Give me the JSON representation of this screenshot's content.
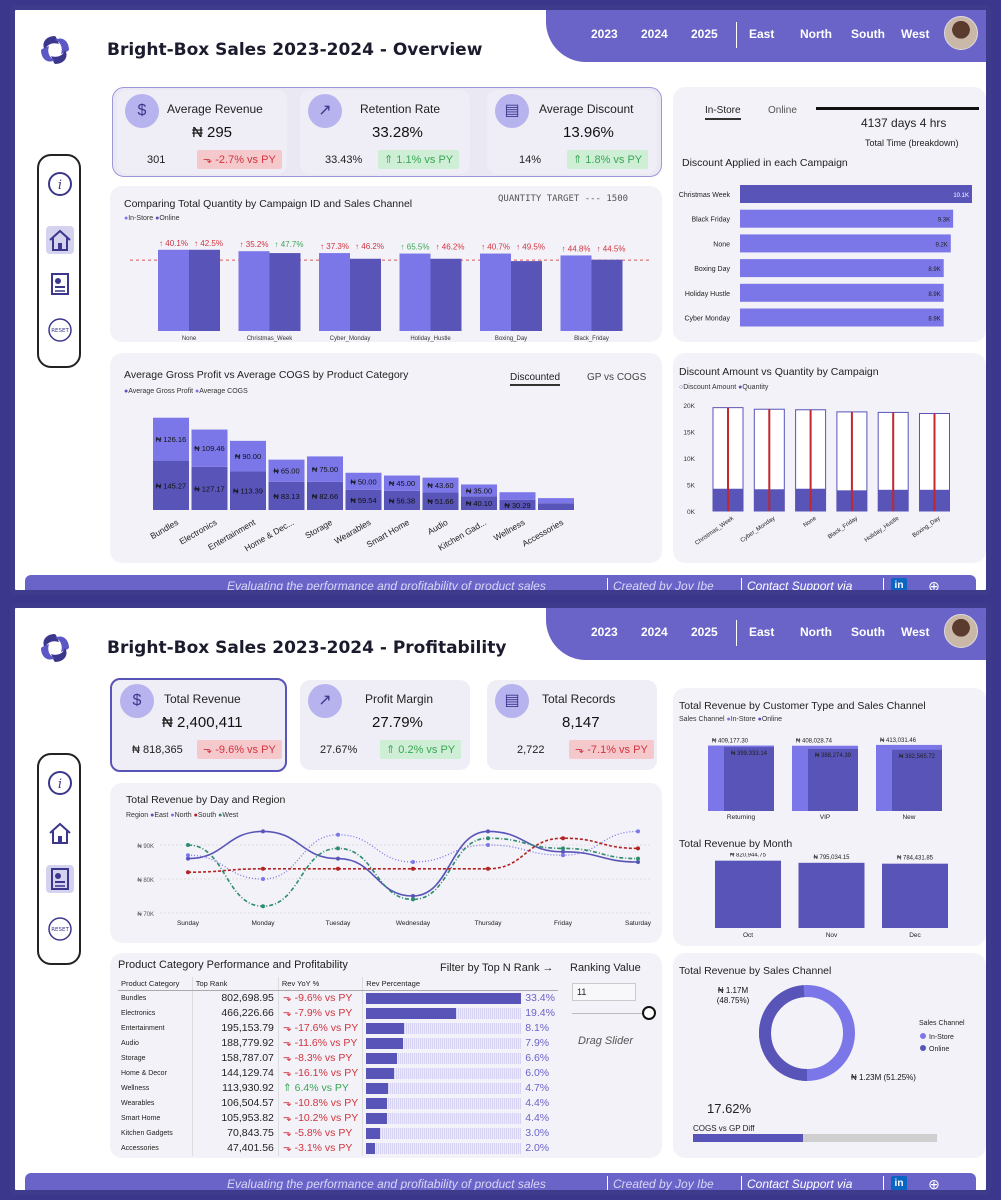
{
  "colors": {
    "dark": "#5854b8",
    "light": "#7b77e8",
    "green": "#2e8b6e",
    "red": "#b22222"
  },
  "nav": {
    "years": [
      "2023",
      "2024",
      "2025"
    ],
    "regions": [
      "East",
      "North",
      "South",
      "West"
    ]
  },
  "footer": {
    "tagline": "Evaluating the performance and profitability of product sales",
    "creator": "Created by Joy Ibe",
    "contact": "Contact Support via",
    "linkedin": "in"
  },
  "overview": {
    "title": "Bright-Box Sales 2023-2024 - Overview",
    "kpis": [
      {
        "label": "Average Revenue",
        "value": "₦ 295",
        "prev": "301",
        "delta": "-2.7% vs PY",
        "trend": "down"
      },
      {
        "label": "Retention Rate",
        "value": "33.28%",
        "prev": "33.43%",
        "delta": "1.1% vs PY",
        "trend": "up"
      },
      {
        "label": "Average Discount",
        "value": "13.96%",
        "prev": "14%",
        "delta": "1.8% vs PY",
        "trend": "up"
      }
    ],
    "channel_tabs": [
      "In-Store",
      "Online"
    ],
    "total_time": "4137 days 4 hrs",
    "total_time_label": "Total Time (breakdown)",
    "qty_chart": {
      "title": "Comparing Total Quantity by Campaign ID and Sales Channel",
      "target_label": "QUANTITY TARGET --- 1500",
      "legend": [
        "In-Store",
        "Online"
      ],
      "categories": [
        "None",
        "Christmas_Week",
        "Cyber_Monday",
        "Holiday_Hustle",
        "Boxing_Day",
        "Black_Friday"
      ],
      "instore_labels": [
        "↑ 40.1%",
        "↑ 35.2%",
        "↑ 37.3%",
        "↑ 65.5%",
        "↑ 40.7%",
        "↑ 44.8%"
      ],
      "online_labels": [
        "↑ 42.5%",
        "↑ 47.7%",
        "↑ 46.2%",
        "↑ 46.2%",
        "↑ 49.5%",
        "↑ 44.5%"
      ],
      "label_good": [
        [
          false,
          false
        ],
        [
          false,
          true
        ],
        [
          false,
          false
        ],
        [
          true,
          false
        ],
        [
          false,
          false
        ],
        [
          false,
          false
        ]
      ]
    },
    "discount_chart": {
      "title": "Discount Applied in each Campaign",
      "categories": [
        "Christmas Week",
        "Black Friday",
        "None",
        "Boxing Day",
        "Holiday Hustle",
        "Cyber Monday"
      ],
      "values": [
        10.1,
        9.3,
        9.2,
        8.9,
        8.9,
        8.9
      ],
      "labels": [
        "10.1K",
        "9.3K",
        "9.2K",
        "8.9K",
        "8.9K",
        "8.9K"
      ]
    },
    "gp_chart": {
      "title": "Average Gross Profit vs Average COGS by Product Category",
      "tabs": [
        "Discounted",
        "GP vs COGS"
      ],
      "legend": [
        "Average Gross Profit",
        "Average COGS"
      ],
      "categories": [
        "Bundles",
        "Electronics",
        "Entertainment",
        "Home & Dec...",
        "Storage",
        "Wearables",
        "Smart Home",
        "Audio",
        "Kitchen Gad...",
        "Wellness",
        "Accessories"
      ],
      "gp": [
        145.27,
        127.17,
        113.39,
        83.13,
        82.66,
        59.54,
        56.38,
        51.66,
        40.1,
        30.29,
        20
      ],
      "cogs": [
        126.16,
        109.46,
        90.0,
        65.0,
        75.0,
        50.0,
        45.0,
        43.6,
        35.0,
        22,
        15
      ],
      "gp_labels": [
        "₦ 145.27",
        "₦ 127.17",
        "₦ 113.39",
        "₦ 83.13",
        "₦ 82.66",
        "₦ 59.54",
        "₦ 56.38",
        "₦ 51.66",
        "₦ 40.10",
        "₦ 30.29",
        ""
      ],
      "cogs_labels": [
        "₦ 126.16",
        "₦ 109.46",
        "₦ 90.00",
        "₦ 65.00",
        "₦ 75.00",
        "₦ 50.00",
        "₦ 45.00",
        "₦ 43.60",
        "₦ 35.00",
        "",
        ""
      ]
    },
    "dq_chart": {
      "title": "Discount Amount vs Quantity by Campaign",
      "legend": [
        "Discount Amount",
        "Quantity"
      ],
      "categories": [
        "Christmas_Week",
        "Cyber_Monday",
        "None",
        "Black_Friday",
        "Holiday_Hustle",
        "Boxing_Day"
      ],
      "discount": [
        19500,
        19200,
        19100,
        18700,
        18600,
        18400
      ],
      "quantity": [
        4200,
        4100,
        4200,
        3900,
        4000,
        4000
      ],
      "yticks": [
        "20K",
        "15K",
        "10K",
        "5K",
        "0K"
      ]
    }
  },
  "profitability": {
    "title": "Bright-Box Sales 2023-2024 - Profitability",
    "kpis": [
      {
        "label": "Total Revenue",
        "value": "₦ 2,400,411",
        "prev": "₦ 818,365",
        "delta": "-9.6% vs PY",
        "trend": "down"
      },
      {
        "label": "Profit Margin",
        "value": "27.79%",
        "prev": "27.67%",
        "delta": "0.2% vs PY",
        "trend": "up"
      },
      {
        "label": "Total Records",
        "value": "8,147",
        "prev": "2,722",
        "delta": "-7.1% vs PY",
        "trend": "down"
      }
    ],
    "day_chart": {
      "title": "Total Revenue by Day and Region",
      "legend_title": "Region",
      "regions": [
        "East",
        "North",
        "South",
        "West"
      ],
      "days": [
        "Sunday",
        "Monday",
        "Tuesday",
        "Wednesday",
        "Thursday",
        "Friday",
        "Saturday"
      ],
      "yticks": [
        "₦ 90K",
        "₦ 80K",
        "₦ 70K"
      ],
      "series": {
        "East": [
          86,
          94,
          86,
          75,
          94,
          88,
          85
        ],
        "North": [
          87,
          80,
          93,
          85,
          90,
          87,
          94
        ],
        "South": [
          82,
          83,
          83,
          83,
          83,
          92,
          89
        ],
        "West": [
          90,
          72,
          89,
          74,
          92,
          89,
          86
        ]
      }
    },
    "table": {
      "title": "Product Category Performance and Profitability",
      "headers": [
        "Product Category",
        "Top Rank",
        "Rev YoY %",
        "Rev Percentage"
      ],
      "rows": [
        {
          "cat": "Bundles",
          "rank": "802,698.95",
          "yoy": "-9.6% vs PY",
          "pct": "33.4%",
          "p": 33.4,
          "good": false
        },
        {
          "cat": "Electronics",
          "rank": "466,226.66",
          "yoy": "-7.9% vs PY",
          "pct": "19.4%",
          "p": 19.4,
          "good": false
        },
        {
          "cat": "Entertainment",
          "rank": "195,153.79",
          "yoy": "-17.6% vs PY",
          "pct": "8.1%",
          "p": 8.1,
          "good": false
        },
        {
          "cat": "Audio",
          "rank": "188,779.92",
          "yoy": "-11.6% vs PY",
          "pct": "7.9%",
          "p": 7.9,
          "good": false
        },
        {
          "cat": "Storage",
          "rank": "158,787.07",
          "yoy": "-8.3% vs PY",
          "pct": "6.6%",
          "p": 6.6,
          "good": false
        },
        {
          "cat": "Home & Decor",
          "rank": "144,129.74",
          "yoy": "-16.1% vs PY",
          "pct": "6.0%",
          "p": 6.0,
          "good": false
        },
        {
          "cat": "Wellness",
          "rank": "113,930.92",
          "yoy": "6.4% vs PY",
          "pct": "4.7%",
          "p": 4.7,
          "good": true
        },
        {
          "cat": "Wearables",
          "rank": "106,504.57",
          "yoy": "-10.8% vs PY",
          "pct": "4.4%",
          "p": 4.4,
          "good": false
        },
        {
          "cat": "Smart Home",
          "rank": "105,953.82",
          "yoy": "-10.2% vs PY",
          "pct": "4.4%",
          "p": 4.4,
          "good": false
        },
        {
          "cat": "Kitchen Gadgets",
          "rank": "70,843.75",
          "yoy": "-5.8% vs PY",
          "pct": "3.0%",
          "p": 3.0,
          "good": false
        },
        {
          "cat": "Accessories",
          "rank": "47,401.56",
          "yoy": "-3.1% vs PY",
          "pct": "2.0%",
          "p": 2.0,
          "good": false
        }
      ]
    },
    "filter": {
      "label": "Filter by Top N Rank →",
      "ranking_label": "Ranking Value",
      "value": "11",
      "hint": "Drag Slider"
    },
    "cust_chart": {
      "title": "Total Revenue by Customer Type and Sales Channel",
      "legend_title": "Sales Channel",
      "legend": [
        "In-Store",
        "Online"
      ],
      "categories": [
        "Returning",
        "VIP",
        "New"
      ],
      "instore": [
        409177.3,
        408028.74,
        413031.46
      ],
      "online": [
        399333.14,
        388274.39,
        382565.72
      ],
      "instore_labels": [
        "₦ 409,177.30",
        "₦ 408,028.74",
        "₦ 413,031.46"
      ],
      "online_labels": [
        "₦ 399,333.14",
        "₦ 388,274.39",
        "₦ 382,565.72"
      ]
    },
    "month_chart": {
      "title": "Total Revenue by Month",
      "categories": [
        "Oct",
        "Nov",
        "Dec"
      ],
      "values": [
        820944.75,
        795034.15,
        784431.85
      ],
      "labels": [
        "₦ 820,944.75",
        "₦ 795,034.15",
        "₦ 784,431.85"
      ]
    },
    "donut": {
      "title": "Total Revenue by Sales Channel",
      "legend_title": "Sales Channel",
      "legend": [
        "In-Store",
        "Online"
      ],
      "instore_label": "₦ 1.23M (51.25%)",
      "online_label_1": "₦ 1.17M",
      "online_label_2": "(48.75%)",
      "instore_pct": 51.25,
      "online_pct": 48.75,
      "diff_value": "17.62%",
      "diff_label": "COGS vs GP Diff",
      "diff_fraction": 0.45
    }
  },
  "chart_data": [
    {
      "type": "bar",
      "title": "Comparing Total Quantity by Campaign ID and Sales Channel",
      "categories": [
        "None",
        "Christmas_Week",
        "Cyber_Monday",
        "Holiday_Hustle",
        "Boxing_Day",
        "Black_Friday"
      ],
      "series": [
        {
          "name": "In-Store",
          "values": [
            1720,
            1690,
            1650,
            1640,
            1640,
            1600
          ]
        },
        {
          "name": "Online",
          "values": [
            1720,
            1650,
            1530,
            1530,
            1480,
            1510
          ]
        }
      ],
      "target": 1500
    },
    {
      "type": "bar",
      "title": "Discount Applied in each Campaign",
      "categories": [
        "Christmas Week",
        "Black Friday",
        "None",
        "Boxing Day",
        "Holiday Hustle",
        "Cyber Monday"
      ],
      "values": [
        10100,
        9300,
        9200,
        8900,
        8900,
        8900
      ]
    },
    {
      "type": "bar",
      "title": "Average Gross Profit vs Average COGS by Product Category",
      "categories": [
        "Bundles",
        "Electronics",
        "Entertainment",
        "Home & Dec...",
        "Storage",
        "Wearables",
        "Smart Home",
        "Audio",
        "Kitchen Gad...",
        "Wellness",
        "Accessories"
      ],
      "series": [
        {
          "name": "Average Gross Profit",
          "values": [
            145.27,
            127.17,
            113.39,
            83.13,
            82.66,
            59.54,
            56.38,
            51.66,
            40.1,
            30.29,
            20
          ]
        },
        {
          "name": "Average COGS",
          "values": [
            126.16,
            109.46,
            90.0,
            65.0,
            75.0,
            50.0,
            45.0,
            43.6,
            35.0,
            22,
            15
          ]
        }
      ]
    },
    {
      "type": "bar",
      "title": "Discount Amount vs Quantity by Campaign",
      "categories": [
        "Christmas_Week",
        "Cyber_Monday",
        "None",
        "Black_Friday",
        "Holiday_Hustle",
        "Boxing_Day"
      ],
      "series": [
        {
          "name": "Discount Amount",
          "values": [
            19500,
            19200,
            19100,
            18700,
            18600,
            18400
          ]
        },
        {
          "name": "Quantity",
          "values": [
            4200,
            4100,
            4200,
            3900,
            4000,
            4000
          ]
        }
      ],
      "ylim": [
        0,
        20000
      ]
    },
    {
      "type": "line",
      "title": "Total Revenue by Day and Region",
      "x": [
        "Sunday",
        "Monday",
        "Tuesday",
        "Wednesday",
        "Thursday",
        "Friday",
        "Saturday"
      ],
      "series": [
        {
          "name": "East",
          "values": [
            86000,
            94000,
            86000,
            75000,
            94000,
            88000,
            85000
          ]
        },
        {
          "name": "North",
          "values": [
            87000,
            80000,
            93000,
            85000,
            90000,
            87000,
            94000
          ]
        },
        {
          "name": "South",
          "values": [
            82000,
            83000,
            83000,
            83000,
            83000,
            92000,
            89000
          ]
        },
        {
          "name": "West",
          "values": [
            90000,
            72000,
            89000,
            74000,
            92000,
            89000,
            86000
          ]
        }
      ],
      "ylim": [
        70000,
        95000
      ]
    },
    {
      "type": "bar",
      "title": "Total Revenue by Customer Type and Sales Channel",
      "categories": [
        "Returning",
        "VIP",
        "New"
      ],
      "series": [
        {
          "name": "In-Store",
          "values": [
            409177.3,
            408028.74,
            413031.46
          ]
        },
        {
          "name": "Online",
          "values": [
            399333.14,
            388274.39,
            382565.72
          ]
        }
      ]
    },
    {
      "type": "bar",
      "title": "Total Revenue by Month",
      "categories": [
        "Oct",
        "Nov",
        "Dec"
      ],
      "values": [
        820944.75,
        795034.15,
        784431.85
      ]
    },
    {
      "type": "pie",
      "title": "Total Revenue by Sales Channel",
      "categories": [
        "In-Store",
        "Online"
      ],
      "values": [
        1230000,
        1170000
      ]
    }
  ]
}
